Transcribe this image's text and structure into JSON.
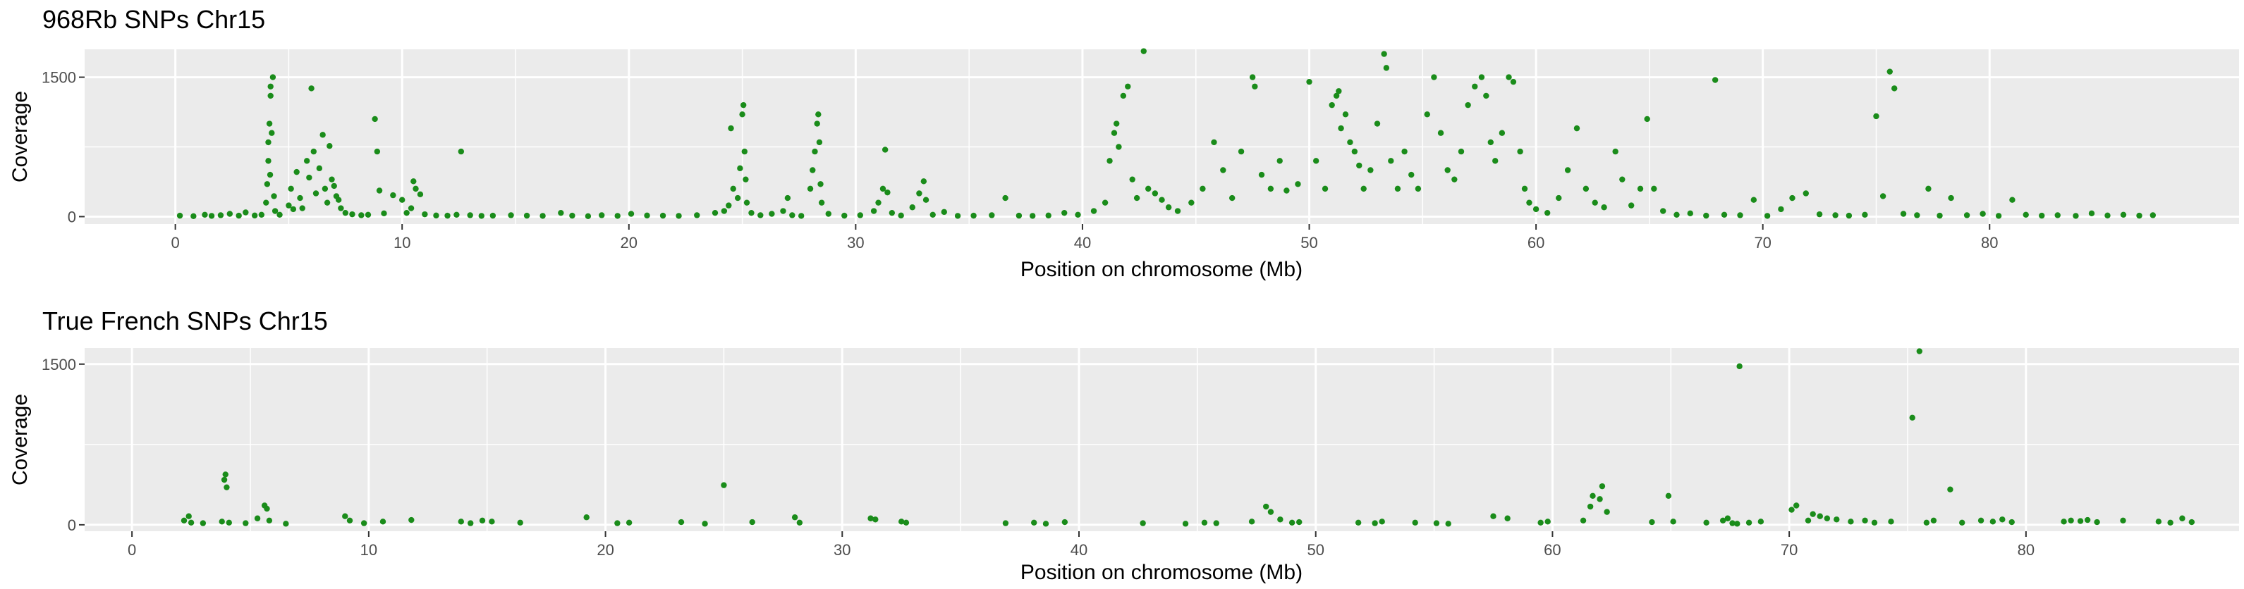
{
  "chart_data": [
    {
      "type": "scatter",
      "title": "968Rb SNPs Chr15",
      "xlabel": "Position on chromosome (Mb)",
      "ylabel": "Coverage",
      "xlim": [
        -4,
        91
      ],
      "ylim": [
        -80,
        1800
      ],
      "xticks": [
        0,
        10,
        20,
        30,
        40,
        50,
        60,
        70,
        80
      ],
      "yticks": [
        0,
        1500
      ],
      "grid": true,
      "legend": "none",
      "point_color": "#1a8c1a",
      "panel_color": "#ebebeb",
      "points": [
        [
          0.2,
          10
        ],
        [
          0.8,
          5
        ],
        [
          1.3,
          20
        ],
        [
          1.6,
          8
        ],
        [
          2.0,
          15
        ],
        [
          2.4,
          30
        ],
        [
          2.8,
          10
        ],
        [
          3.1,
          45
        ],
        [
          3.5,
          12
        ],
        [
          3.8,
          20
        ],
        [
          4.0,
          150
        ],
        [
          4.05,
          350
        ],
        [
          4.1,
          600
        ],
        [
          4.1,
          800
        ],
        [
          4.15,
          1000
        ],
        [
          4.2,
          1300
        ],
        [
          4.2,
          1400
        ],
        [
          4.3,
          1500
        ],
        [
          4.25,
          900
        ],
        [
          4.18,
          450
        ],
        [
          4.35,
          220
        ],
        [
          4.4,
          60
        ],
        [
          4.6,
          20
        ],
        [
          5.0,
          120
        ],
        [
          5.1,
          300
        ],
        [
          5.2,
          80
        ],
        [
          5.35,
          480
        ],
        [
          5.5,
          200
        ],
        [
          5.6,
          90
        ],
        [
          5.8,
          600
        ],
        [
          5.9,
          420
        ],
        [
          6.0,
          1380
        ],
        [
          6.1,
          700
        ],
        [
          6.2,
          250
        ],
        [
          6.35,
          520
        ],
        [
          6.5,
          880
        ],
        [
          6.6,
          300
        ],
        [
          6.7,
          150
        ],
        [
          6.8,
          760
        ],
        [
          6.9,
          400
        ],
        [
          7.0,
          330
        ],
        [
          7.1,
          220
        ],
        [
          7.2,
          180
        ],
        [
          7.3,
          90
        ],
        [
          7.5,
          40
        ],
        [
          7.8,
          25
        ],
        [
          8.2,
          15
        ],
        [
          8.5,
          20
        ],
        [
          8.8,
          1050
        ],
        [
          8.9,
          700
        ],
        [
          9.0,
          280
        ],
        [
          9.2,
          35
        ],
        [
          9.6,
          230
        ],
        [
          10.0,
          180
        ],
        [
          10.2,
          40
        ],
        [
          10.4,
          90
        ],
        [
          10.5,
          380
        ],
        [
          10.6,
          300
        ],
        [
          10.8,
          240
        ],
        [
          11.0,
          25
        ],
        [
          11.5,
          12
        ],
        [
          12.0,
          10
        ],
        [
          12.4,
          20
        ],
        [
          12.6,
          700
        ],
        [
          13.0,
          15
        ],
        [
          13.5,
          8
        ],
        [
          14.0,
          10
        ],
        [
          14.8,
          15
        ],
        [
          15.5,
          10
        ],
        [
          16.2,
          8
        ],
        [
          17.0,
          40
        ],
        [
          17.5,
          10
        ],
        [
          18.2,
          5
        ],
        [
          18.8,
          15
        ],
        [
          19.5,
          8
        ],
        [
          20.1,
          30
        ],
        [
          20.8,
          12
        ],
        [
          21.5,
          10
        ],
        [
          22.2,
          8
        ],
        [
          23.0,
          15
        ],
        [
          23.8,
          40
        ],
        [
          24.2,
          60
        ],
        [
          24.4,
          120
        ],
        [
          24.5,
          950
        ],
        [
          24.6,
          300
        ],
        [
          24.8,
          200
        ],
        [
          24.9,
          520
        ],
        [
          25.0,
          1100
        ],
        [
          25.05,
          1200
        ],
        [
          25.1,
          700
        ],
        [
          25.15,
          400
        ],
        [
          25.2,
          150
        ],
        [
          25.4,
          40
        ],
        [
          25.8,
          15
        ],
        [
          26.3,
          30
        ],
        [
          26.8,
          60
        ],
        [
          27.0,
          200
        ],
        [
          27.2,
          15
        ],
        [
          27.6,
          8
        ],
        [
          28.0,
          300
        ],
        [
          28.1,
          500
        ],
        [
          28.2,
          700
        ],
        [
          28.3,
          1000
        ],
        [
          28.35,
          1100
        ],
        [
          28.4,
          800
        ],
        [
          28.45,
          350
        ],
        [
          28.5,
          150
        ],
        [
          28.8,
          30
        ],
        [
          29.5,
          10
        ],
        [
          30.2,
          15
        ],
        [
          30.8,
          60
        ],
        [
          31.0,
          150
        ],
        [
          31.2,
          300
        ],
        [
          31.3,
          720
        ],
        [
          31.4,
          260
        ],
        [
          31.6,
          40
        ],
        [
          32.0,
          12
        ],
        [
          32.5,
          100
        ],
        [
          32.8,
          250
        ],
        [
          33.0,
          380
        ],
        [
          33.1,
          180
        ],
        [
          33.4,
          20
        ],
        [
          33.9,
          50
        ],
        [
          34.5,
          8
        ],
        [
          35.2,
          10
        ],
        [
          36.0,
          15
        ],
        [
          36.6,
          200
        ],
        [
          37.2,
          10
        ],
        [
          37.8,
          8
        ],
        [
          38.5,
          12
        ],
        [
          39.2,
          40
        ],
        [
          39.8,
          20
        ],
        [
          40.5,
          60
        ],
        [
          41.0,
          150
        ],
        [
          41.2,
          600
        ],
        [
          41.4,
          900
        ],
        [
          41.5,
          1000
        ],
        [
          41.6,
          750
        ],
        [
          41.8,
          1300
        ],
        [
          42.0,
          1400
        ],
        [
          42.2,
          400
        ],
        [
          42.4,
          200
        ],
        [
          42.7,
          1780
        ],
        [
          42.9,
          300
        ],
        [
          43.2,
          250
        ],
        [
          43.5,
          180
        ],
        [
          43.8,
          100
        ],
        [
          44.2,
          60
        ],
        [
          44.8,
          150
        ],
        [
          45.3,
          300
        ],
        [
          45.8,
          800
        ],
        [
          46.2,
          500
        ],
        [
          46.6,
          200
        ],
        [
          47.0,
          700
        ],
        [
          47.5,
          1500
        ],
        [
          47.6,
          1400
        ],
        [
          47.9,
          450
        ],
        [
          48.3,
          300
        ],
        [
          48.7,
          600
        ],
        [
          49.0,
          280
        ],
        [
          49.5,
          350
        ],
        [
          50.0,
          1450
        ],
        [
          50.3,
          600
        ],
        [
          50.7,
          300
        ],
        [
          51.0,
          1200
        ],
        [
          51.2,
          1300
        ],
        [
          51.3,
          1350
        ],
        [
          51.4,
          950
        ],
        [
          51.6,
          1100
        ],
        [
          51.8,
          800
        ],
        [
          52.0,
          700
        ],
        [
          52.2,
          550
        ],
        [
          52.4,
          300
        ],
        [
          52.7,
          500
        ],
        [
          53.0,
          1000
        ],
        [
          53.3,
          1750
        ],
        [
          53.4,
          1600
        ],
        [
          53.6,
          600
        ],
        [
          53.9,
          300
        ],
        [
          54.2,
          700
        ],
        [
          54.5,
          450
        ],
        [
          54.8,
          300
        ],
        [
          55.2,
          1100
        ],
        [
          55.5,
          1500
        ],
        [
          55.8,
          900
        ],
        [
          56.1,
          500
        ],
        [
          56.4,
          400
        ],
        [
          56.7,
          700
        ],
        [
          57.0,
          1200
        ],
        [
          57.3,
          1400
        ],
        [
          57.6,
          1500
        ],
        [
          57.8,
          1300
        ],
        [
          58.0,
          800
        ],
        [
          58.2,
          600
        ],
        [
          58.5,
          900
        ],
        [
          58.8,
          1500
        ],
        [
          59.0,
          1450
        ],
        [
          59.3,
          700
        ],
        [
          59.5,
          300
        ],
        [
          59.7,
          150
        ],
        [
          60.0,
          80
        ],
        [
          60.5,
          40
        ],
        [
          61.0,
          200
        ],
        [
          61.4,
          500
        ],
        [
          61.8,
          950
        ],
        [
          62.2,
          300
        ],
        [
          62.6,
          150
        ],
        [
          63.0,
          100
        ],
        [
          63.5,
          700
        ],
        [
          63.8,
          400
        ],
        [
          64.2,
          120
        ],
        [
          64.6,
          300
        ],
        [
          64.9,
          1050
        ],
        [
          65.2,
          300
        ],
        [
          65.6,
          60
        ],
        [
          66.2,
          20
        ],
        [
          66.8,
          35
        ],
        [
          67.5,
          10
        ],
        [
          67.9,
          1470
        ],
        [
          68.3,
          20
        ],
        [
          69.0,
          15
        ],
        [
          69.6,
          180
        ],
        [
          70.2,
          8
        ],
        [
          70.8,
          80
        ],
        [
          71.3,
          200
        ],
        [
          71.9,
          250
        ],
        [
          72.5,
          25
        ],
        [
          73.2,
          15
        ],
        [
          73.8,
          10
        ],
        [
          74.5,
          20
        ],
        [
          75.0,
          1080
        ],
        [
          75.3,
          220
        ],
        [
          75.6,
          1560
        ],
        [
          75.8,
          1380
        ],
        [
          76.2,
          30
        ],
        [
          76.8,
          15
        ],
        [
          77.3,
          300
        ],
        [
          77.8,
          10
        ],
        [
          78.3,
          200
        ],
        [
          79.0,
          15
        ],
        [
          79.7,
          30
        ],
        [
          80.4,
          8
        ],
        [
          81.0,
          180
        ],
        [
          81.6,
          20
        ],
        [
          82.3,
          10
        ],
        [
          83.0,
          15
        ],
        [
          83.8,
          8
        ],
        [
          84.5,
          35
        ],
        [
          85.2,
          12
        ],
        [
          85.9,
          20
        ],
        [
          86.6,
          10
        ],
        [
          87.2,
          15
        ]
      ]
    },
    {
      "type": "scatter",
      "title": "True French SNPs Chr15",
      "xlabel": "Position on chromosome (Mb)",
      "ylabel": "Coverage",
      "xlim": [
        -2,
        89
      ],
      "ylim": [
        -60,
        1650
      ],
      "xticks": [
        0,
        10,
        20,
        30,
        40,
        50,
        60,
        70,
        80
      ],
      "yticks": [
        0,
        1500
      ],
      "grid": true,
      "legend": "none",
      "point_color": "#1a8c1a",
      "panel_color": "#ebebeb",
      "points": [
        [
          2.2,
          40
        ],
        [
          2.4,
          80
        ],
        [
          2.5,
          20
        ],
        [
          3.0,
          15
        ],
        [
          3.8,
          30
        ],
        [
          3.9,
          420
        ],
        [
          3.95,
          470
        ],
        [
          4.0,
          350
        ],
        [
          4.1,
          20
        ],
        [
          4.8,
          15
        ],
        [
          5.3,
          60
        ],
        [
          5.6,
          180
        ],
        [
          5.7,
          150
        ],
        [
          5.8,
          40
        ],
        [
          6.5,
          10
        ],
        [
          9.0,
          80
        ],
        [
          9.2,
          40
        ],
        [
          9.8,
          15
        ],
        [
          10.6,
          30
        ],
        [
          11.8,
          45
        ],
        [
          13.9,
          30
        ],
        [
          14.3,
          15
        ],
        [
          14.8,
          40
        ],
        [
          15.2,
          30
        ],
        [
          16.4,
          20
        ],
        [
          19.2,
          70
        ],
        [
          20.5,
          15
        ],
        [
          21.0,
          20
        ],
        [
          23.2,
          25
        ],
        [
          24.2,
          10
        ],
        [
          25.0,
          370
        ],
        [
          26.2,
          25
        ],
        [
          28.0,
          70
        ],
        [
          28.2,
          20
        ],
        [
          31.2,
          60
        ],
        [
          31.4,
          50
        ],
        [
          32.5,
          30
        ],
        [
          32.7,
          20
        ],
        [
          36.9,
          15
        ],
        [
          38.1,
          20
        ],
        [
          38.6,
          10
        ],
        [
          39.4,
          25
        ],
        [
          42.7,
          15
        ],
        [
          44.5,
          10
        ],
        [
          45.3,
          20
        ],
        [
          45.8,
          15
        ],
        [
          47.3,
          30
        ],
        [
          47.9,
          170
        ],
        [
          48.1,
          120
        ],
        [
          48.5,
          50
        ],
        [
          49.0,
          20
        ],
        [
          49.3,
          25
        ],
        [
          51.8,
          20
        ],
        [
          52.5,
          15
        ],
        [
          52.8,
          30
        ],
        [
          54.2,
          20
        ],
        [
          55.1,
          15
        ],
        [
          55.6,
          10
        ],
        [
          57.5,
          80
        ],
        [
          58.1,
          60
        ],
        [
          59.5,
          20
        ],
        [
          59.8,
          30
        ],
        [
          61.3,
          40
        ],
        [
          61.6,
          170
        ],
        [
          61.7,
          270
        ],
        [
          62.0,
          240
        ],
        [
          62.1,
          360
        ],
        [
          62.3,
          120
        ],
        [
          64.2,
          25
        ],
        [
          64.9,
          270
        ],
        [
          65.1,
          30
        ],
        [
          66.5,
          20
        ],
        [
          67.2,
          40
        ],
        [
          67.4,
          60
        ],
        [
          67.6,
          15
        ],
        [
          67.8,
          10
        ],
        [
          67.9,
          1480
        ],
        [
          68.3,
          20
        ],
        [
          68.8,
          30
        ],
        [
          70.1,
          140
        ],
        [
          70.3,
          180
        ],
        [
          70.8,
          40
        ],
        [
          71.0,
          100
        ],
        [
          71.3,
          80
        ],
        [
          71.6,
          60
        ],
        [
          72.0,
          50
        ],
        [
          72.6,
          30
        ],
        [
          73.2,
          40
        ],
        [
          73.6,
          20
        ],
        [
          74.3,
          30
        ],
        [
          75.2,
          1000
        ],
        [
          75.5,
          1620
        ],
        [
          75.8,
          20
        ],
        [
          76.1,
          40
        ],
        [
          76.8,
          330
        ],
        [
          77.3,
          20
        ],
        [
          78.1,
          40
        ],
        [
          78.6,
          30
        ],
        [
          79.0,
          50
        ],
        [
          79.4,
          25
        ],
        [
          81.6,
          30
        ],
        [
          81.9,
          40
        ],
        [
          82.3,
          35
        ],
        [
          82.6,
          45
        ],
        [
          83.0,
          25
        ],
        [
          84.1,
          40
        ],
        [
          85.6,
          30
        ],
        [
          86.1,
          20
        ],
        [
          86.6,
          60
        ],
        [
          87.0,
          25
        ]
      ]
    }
  ]
}
